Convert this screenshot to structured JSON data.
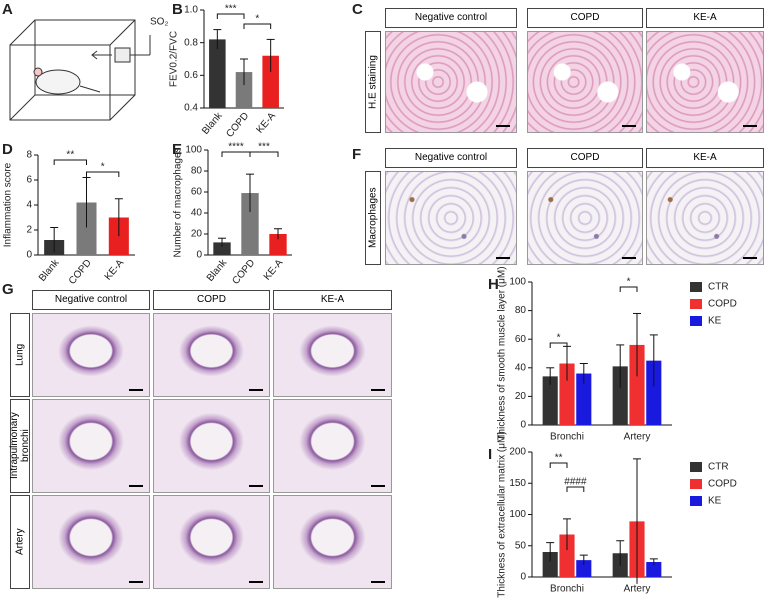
{
  "panel_labels": [
    "A",
    "B",
    "C",
    "D",
    "E",
    "F",
    "G",
    "H",
    "I"
  ],
  "panel_a": {
    "label": "SO₂"
  },
  "panel_c": {
    "columns": [
      "Negative control",
      "COPD",
      "KE-A"
    ],
    "row_label": "H.E staining"
  },
  "panel_f": {
    "columns": [
      "Negative control",
      "COPD",
      "KE-A"
    ],
    "row_label": "Macrophages"
  },
  "panel_g": {
    "columns": [
      "Negative control",
      "COPD",
      "KE-A"
    ],
    "rows": [
      "Lung",
      "Intrapulmonary bronchi",
      "Artery"
    ]
  },
  "chart_data": [
    {
      "type": "bar",
      "ylabel": "FEV0.2/FVC",
      "categories": [
        "Blank",
        "COPD",
        "KE-A"
      ],
      "values": [
        0.82,
        0.62,
        0.72
      ],
      "errors": [
        0.06,
        0.08,
        0.1
      ],
      "colors": [
        "#333333",
        "#7a7a7a",
        "#e8201f"
      ],
      "ylim": [
        0.4,
        1.0
      ],
      "yticks": [
        0.4,
        0.6,
        0.8,
        {
          "value": 1,
          "label": "1.0"
        }
      ],
      "annotations": [
        "***",
        "*"
      ]
    },
    {
      "type": "bar",
      "ylabel": "Inflammation score",
      "categories": [
        "Blank",
        "COPD",
        "KE-A"
      ],
      "values": [
        1.2,
        4.2,
        3.0
      ],
      "errors": [
        1.0,
        2.0,
        1.5
      ],
      "colors": [
        "#333333",
        "#7a7a7a",
        "#e8201f"
      ],
      "ylim": [
        0,
        8
      ],
      "yticks": [
        0,
        2,
        4,
        6,
        8
      ],
      "annotations": [
        "**",
        "*"
      ]
    },
    {
      "type": "bar",
      "ylabel": "Number of macrophages",
      "categories": [
        "Blank",
        "COPD",
        "KE-A"
      ],
      "values": [
        12,
        59,
        20
      ],
      "errors": [
        4,
        18,
        5
      ],
      "colors": [
        "#333333",
        "#7a7a7a",
        "#e8201f"
      ],
      "ylim": [
        0,
        100
      ],
      "yticks": [
        0,
        20,
        40,
        60,
        80,
        100
      ],
      "annotations": [
        "****",
        "***"
      ]
    },
    {
      "type": "grouped_bar",
      "ylabel": "Thickness of smooth muscle layer (μM)",
      "categories": [
        "Bronchi",
        "Artery"
      ],
      "series": [
        {
          "name": "CTR",
          "color": "#333333",
          "values": [
            34,
            41
          ],
          "errors": [
            6,
            15
          ]
        },
        {
          "name": "COPD",
          "color": "#f03030",
          "values": [
            43,
            56
          ],
          "errors": [
            12,
            22
          ]
        },
        {
          "name": "KE",
          "color": "#1a1adf",
          "values": [
            36,
            45
          ],
          "errors": [
            7,
            18
          ]
        }
      ],
      "ylim": [
        0,
        100
      ],
      "yticks": [
        0,
        20,
        40,
        60,
        80,
        100
      ],
      "annotations": [
        "*",
        "*"
      ]
    },
    {
      "type": "grouped_bar",
      "ylabel": "Thickness of extracellular matrix (μM)",
      "categories": [
        "Bronchi",
        "Artery"
      ],
      "series": [
        {
          "name": "CTR",
          "color": "#333333",
          "values": [
            40,
            38
          ],
          "errors": [
            15,
            20
          ]
        },
        {
          "name": "COPD",
          "color": "#f03030",
          "values": [
            68,
            89
          ],
          "errors": [
            25,
            100
          ]
        },
        {
          "name": "KE",
          "color": "#1a1adf",
          "values": [
            27,
            24
          ],
          "errors": [
            8,
            5
          ]
        }
      ],
      "ylim": [
        0,
        200
      ],
      "yticks": [
        0,
        50,
        100,
        150,
        200
      ],
      "annotations": [
        "**",
        "####"
      ]
    }
  ]
}
